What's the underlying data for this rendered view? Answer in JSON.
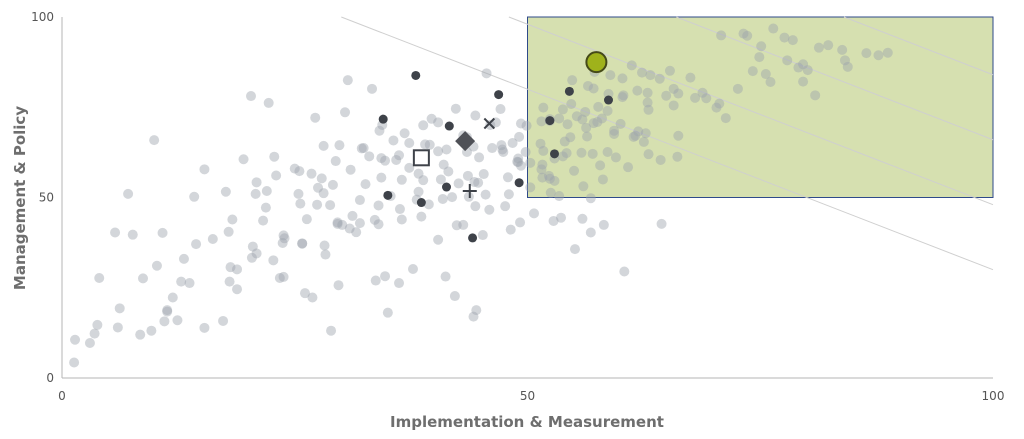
{
  "chart_data": {
    "type": "scatter",
    "title": "",
    "xlabel": "Implementation & Measurement",
    "ylabel": "Management & Policy",
    "xlim": [
      0,
      100
    ],
    "ylim": [
      0,
      100
    ],
    "x_ticks": [
      "0",
      "50",
      "100"
    ],
    "y_ticks": [
      "0",
      "50",
      "100"
    ],
    "grid": false,
    "diagonal_reference_lines": [
      {
        "intercept": 130,
        "slope": -1
      },
      {
        "intercept": 148,
        "slope": -1
      },
      {
        "intercept": 166,
        "slope": -1
      },
      {
        "intercept": 184,
        "slope": -1
      },
      {
        "intercept": 202,
        "slope": -1
      },
      {
        "intercept": 220,
        "slope": -1
      }
    ],
    "highlight_region": {
      "x": [
        50,
        100
      ],
      "y": [
        50,
        100
      ],
      "color": "#c8d595"
    },
    "background_color": "#9ea3ad",
    "background_points": [
      [
        1.3,
        4.3
      ],
      [
        8.4,
        12.0
      ],
      [
        1.4,
        10.6
      ],
      [
        17.3,
        15.8
      ],
      [
        20.8,
        51.0
      ],
      [
        12.8,
        26.7
      ],
      [
        23.8,
        28.0
      ],
      [
        18.8,
        24.6
      ],
      [
        23.4,
        27.7
      ],
      [
        10.8,
        40.2
      ],
      [
        8.7,
        27.6
      ],
      [
        5.7,
        40.3
      ],
      [
        14.4,
        37.1
      ],
      [
        29.1,
        53.5
      ],
      [
        7.6,
        39.7
      ],
      [
        21.9,
        47.2
      ],
      [
        16.2,
        38.5
      ],
      [
        11.3,
        18.8
      ],
      [
        17.9,
        40.5
      ],
      [
        30.9,
        41.4
      ],
      [
        11.0,
        15.7
      ],
      [
        13.7,
        26.3
      ],
      [
        22.7,
        32.6
      ],
      [
        20.9,
        54.2
      ],
      [
        27.5,
        52.7
      ],
      [
        3.0,
        9.7
      ],
      [
        18.3,
        43.9
      ],
      [
        34.0,
        42.6
      ],
      [
        28.1,
        51.2
      ],
      [
        18.1,
        30.7
      ],
      [
        25.8,
        37.3
      ],
      [
        23.8,
        39.5
      ],
      [
        29.6,
        42.7
      ],
      [
        32.0,
        42.9
      ],
      [
        20.5,
        36.4
      ],
      [
        21.6,
        43.6
      ],
      [
        18.8,
        30.1
      ],
      [
        33.0,
        61.4
      ],
      [
        25.4,
        51.0
      ],
      [
        11.9,
        22.3
      ],
      [
        25.6,
        48.3
      ],
      [
        32.6,
        53.7
      ],
      [
        38.3,
        51.6
      ],
      [
        26.3,
        44.0
      ],
      [
        9.6,
        13.1
      ],
      [
        23.9,
        38.7
      ],
      [
        39.0,
        64.7
      ],
      [
        22.0,
        51.8
      ],
      [
        34.1,
        68.5
      ],
      [
        31.2,
        44.9
      ],
      [
        25.5,
        57.3
      ],
      [
        34.3,
        60.9
      ],
      [
        25.8,
        37.2
      ],
      [
        20.9,
        34.5
      ],
      [
        18.0,
        26.7
      ],
      [
        28.8,
        47.9
      ],
      [
        42.6,
        53.9
      ],
      [
        43.7,
        50.2
      ],
      [
        34.7,
        60.2
      ],
      [
        32.4,
        63.7
      ],
      [
        38.3,
        56.6
      ],
      [
        23.7,
        37.4
      ],
      [
        41.0,
        59.1
      ],
      [
        35.3,
        50.4
      ],
      [
        28.2,
        36.7
      ],
      [
        43.1,
        67.2
      ],
      [
        44.8,
        61.1
      ],
      [
        46.2,
        63.7
      ],
      [
        43.5,
        62.6
      ],
      [
        27.4,
        48.0
      ],
      [
        28.1,
        64.3
      ],
      [
        44.2,
        64.1
      ],
      [
        38.8,
        70.0
      ],
      [
        22.8,
        61.3
      ],
      [
        34.3,
        55.5
      ],
      [
        36.2,
        61.7
      ],
      [
        40.4,
        62.8
      ],
      [
        29.6,
        43.1
      ],
      [
        47.4,
        62.6
      ],
      [
        32.0,
        49.3
      ],
      [
        37.3,
        65.1
      ],
      [
        46.6,
        70.8
      ],
      [
        30.1,
        42.4
      ],
      [
        36.5,
        43.9
      ],
      [
        38.1,
        49.4
      ],
      [
        44.4,
        47.6
      ],
      [
        44.7,
        54.1
      ],
      [
        44.3,
        54.3
      ],
      [
        41.3,
        63.3
      ],
      [
        41.5,
        57.2
      ],
      [
        49.0,
        60.8
      ],
      [
        35.6,
        65.8
      ],
      [
        44.4,
        72.7
      ],
      [
        43.4,
        65.1
      ],
      [
        45.3,
        56.5
      ],
      [
        41.9,
        50.1
      ],
      [
        50.3,
        52.8
      ],
      [
        39.5,
        64.6
      ],
      [
        43.6,
        56.0
      ],
      [
        47.9,
        55.6
      ],
      [
        48.9,
        59.9
      ],
      [
        52.5,
        51.3
      ],
      [
        35.9,
        60.4
      ],
      [
        49.0,
        59.8
      ],
      [
        48.4,
        65.1
      ],
      [
        53.8,
        61.4
      ],
      [
        47.2,
        64.5
      ],
      [
        43.5,
        66.7
      ],
      [
        40.4,
        70.8
      ],
      [
        51.4,
        64.9
      ],
      [
        52.4,
        71.7
      ],
      [
        52.9,
        54.6
      ],
      [
        45.5,
        50.8
      ],
      [
        52.3,
        56.0
      ],
      [
        52.9,
        60.8
      ],
      [
        51.5,
        71.1
      ],
      [
        52.4,
        55.2
      ],
      [
        51.6,
        55.5
      ],
      [
        47.3,
        63.3
      ],
      [
        49.8,
        62.6
      ],
      [
        49.9,
        69.9
      ],
      [
        54.2,
        62.3
      ],
      [
        51.7,
        62.9
      ],
      [
        55.0,
        57.4
      ],
      [
        56.3,
        69.3
      ],
      [
        51.5,
        57.8
      ],
      [
        54.6,
        66.7
      ],
      [
        52.4,
        71.2
      ],
      [
        54.7,
        75.9
      ],
      [
        53.8,
        74.4
      ],
      [
        57.0,
        62.1
      ],
      [
        57.8,
        58.9
      ],
      [
        61.4,
        66.8
      ],
      [
        53.4,
        71.9
      ],
      [
        60.0,
        70.4
      ],
      [
        56.4,
        66.9
      ],
      [
        59.3,
        67.6
      ],
      [
        50.3,
        59.6
      ],
      [
        57.6,
        75.1
      ],
      [
        55.9,
        71.6
      ],
      [
        58.0,
        71.9
      ],
      [
        55.3,
        72.5
      ],
      [
        54.3,
        70.3
      ],
      [
        59.5,
        61.1
      ],
      [
        56.5,
        80.9
      ],
      [
        61.8,
        79.6
      ],
      [
        59.3,
        68.5
      ],
      [
        58.6,
        62.6
      ],
      [
        62.7,
        67.8
      ],
      [
        57.1,
        70.6
      ],
      [
        54.0,
        65.5
      ],
      [
        58.7,
        78.7
      ],
      [
        56.2,
        73.7
      ],
      [
        58.9,
        83.9
      ],
      [
        62.5,
        65.4
      ],
      [
        57.1,
        80.2
      ],
      [
        61.9,
        68.3
      ],
      [
        62.9,
        79.0
      ],
      [
        60.3,
        78.3
      ],
      [
        57.5,
        70.9
      ],
      [
        65.7,
        80.1
      ],
      [
        64.2,
        82.9
      ],
      [
        60.2,
        83.0
      ],
      [
        62.9,
        76.3
      ],
      [
        61.6,
        67.1
      ],
      [
        66.2,
        67.1
      ],
      [
        58.6,
        74.0
      ],
      [
        60.2,
        77.8
      ],
      [
        68.8,
        79.0
      ],
      [
        64.3,
        60.4
      ],
      [
        66.2,
        78.8
      ],
      [
        68.0,
        77.6
      ],
      [
        63.0,
        74.3
      ],
      [
        62.3,
        84.6
      ],
      [
        64.9,
        78.2
      ],
      [
        65.7,
        75.5
      ],
      [
        71.3,
        72.0
      ],
      [
        69.2,
        77.5
      ],
      [
        70.6,
        76.0
      ],
      [
        70.3,
        74.9
      ],
      [
        74.2,
        85.0
      ],
      [
        75.1,
        91.9
      ],
      [
        73.2,
        95.4
      ],
      [
        79.1,
        86.0
      ],
      [
        77.6,
        94.3
      ],
      [
        79.6,
        82.1
      ],
      [
        79.6,
        86.9
      ],
      [
        80.1,
        85.3
      ],
      [
        83.8,
        90.9
      ],
      [
        84.4,
        86.2
      ],
      [
        88.7,
        90.1
      ],
      [
        75.6,
        84.2
      ],
      [
        80.9,
        78.3
      ],
      [
        86.4,
        90.0
      ],
      [
        87.7,
        89.4
      ],
      [
        7.1,
        51.0
      ],
      [
        20.3,
        78.1
      ],
      [
        22.2,
        76.2
      ],
      [
        27.2,
        72.1
      ],
      [
        30.7,
        82.5
      ],
      [
        33.3,
        80.1
      ],
      [
        45.6,
        84.4
      ],
      [
        9.9,
        65.9
      ],
      [
        3.5,
        12.3
      ],
      [
        15.3,
        57.8
      ],
      [
        19.5,
        60.6
      ],
      [
        14.2,
        50.2
      ],
      [
        33.7,
        27.0
      ],
      [
        37.7,
        30.2
      ],
      [
        41.2,
        28.1
      ],
      [
        26.1,
        23.5
      ],
      [
        10.2,
        31.1
      ],
      [
        40.4,
        38.3
      ],
      [
        42.2,
        22.7
      ],
      [
        35.0,
        18.1
      ],
      [
        29.7,
        25.7
      ],
      [
        36.2,
        26.3
      ],
      [
        26.9,
        22.3
      ],
      [
        38.6,
        44.7
      ],
      [
        44.5,
        18.8
      ],
      [
        28.9,
        13.1
      ],
      [
        34.7,
        28.2
      ],
      [
        55.1,
        35.7
      ],
      [
        60.4,
        29.5
      ],
      [
        64.4,
        42.7
      ],
      [
        34.0,
        47.8
      ],
      [
        38.8,
        54.8
      ],
      [
        36.5,
        54.9
      ],
      [
        20.4,
        33.3
      ],
      [
        28.3,
        34.2
      ],
      [
        17.6,
        51.6
      ],
      [
        3.8,
        14.7
      ],
      [
        6.0,
        14.0
      ],
      [
        15.3,
        13.9
      ],
      [
        12.4,
        16.0
      ],
      [
        11.3,
        18.4
      ],
      [
        6.2,
        19.3
      ],
      [
        4.0,
        27.7
      ],
      [
        13.1,
        33.0
      ],
      [
        42.4,
        42.3
      ],
      [
        43.1,
        42.4
      ],
      [
        45.2,
        39.6
      ],
      [
        48.2,
        41.1
      ],
      [
        49.2,
        43.1
      ],
      [
        52.8,
        43.5
      ],
      [
        55.9,
        44.1
      ],
      [
        58.2,
        42.4
      ],
      [
        56.8,
        40.3
      ],
      [
        53.6,
        44.4
      ],
      [
        50.7,
        45.6
      ],
      [
        47.6,
        47.6
      ],
      [
        32.2,
        63.6
      ],
      [
        31.0,
        57.7
      ],
      [
        26.8,
        56.6
      ],
      [
        23.0,
        56.1
      ],
      [
        29.4,
        60.1
      ],
      [
        25.0,
        58.0
      ],
      [
        27.9,
        55.3
      ],
      [
        34.4,
        70.1
      ],
      [
        30.4,
        73.6
      ],
      [
        29.8,
        64.5
      ],
      [
        36.8,
        67.8
      ],
      [
        39.7,
        71.8
      ],
      [
        42.3,
        74.6
      ],
      [
        47.1,
        74.5
      ],
      [
        49.3,
        70.5
      ],
      [
        51.7,
        74.9
      ],
      [
        54.8,
        82.5
      ],
      [
        57.2,
        84.8
      ],
      [
        61.2,
        86.6
      ],
      [
        63.2,
        83.9
      ],
      [
        65.3,
        85.1
      ],
      [
        67.5,
        83.2
      ],
      [
        72.6,
        80.1
      ],
      [
        76.1,
        82.0
      ],
      [
        73.6,
        94.8
      ],
      [
        76.4,
        96.8
      ],
      [
        78.5,
        93.6
      ],
      [
        81.3,
        91.5
      ],
      [
        84.1,
        88.0
      ],
      [
        70.8,
        94.9
      ],
      [
        74.9,
        88.9
      ],
      [
        77.9,
        88.0
      ],
      [
        82.3,
        92.2
      ],
      [
        44.2,
        17.0
      ],
      [
        46.0,
        70.1
      ],
      [
        49.1,
        66.8
      ],
      [
        51.6,
        59.1
      ],
      [
        55.8,
        62.4
      ],
      [
        63.0,
        62.0
      ],
      [
        66.1,
        61.3
      ],
      [
        60.8,
        58.4
      ],
      [
        58.1,
        55.0
      ],
      [
        56.8,
        49.8
      ],
      [
        53.4,
        50.4
      ],
      [
        56.0,
        53.1
      ],
      [
        49.3,
        58.8
      ],
      [
        31.6,
        40.4
      ],
      [
        33.6,
        43.8
      ],
      [
        36.3,
        46.8
      ],
      [
        39.4,
        48.1
      ],
      [
        40.9,
        49.6
      ],
      [
        40.7,
        55.0
      ],
      [
        37.3,
        58.2
      ],
      [
        45.9,
        46.6
      ],
      [
        48.0,
        50.9
      ]
    ],
    "series": [
      {
        "name": "",
        "marker": "dot",
        "color": "#3e4249",
        "points": [
          [
            38.0,
            83.8
          ],
          [
            34.5,
            71.7
          ],
          [
            41.6,
            69.8
          ],
          [
            46.9,
            78.5
          ],
          [
            54.5,
            79.4
          ],
          [
            58.7,
            77.0
          ],
          [
            52.4,
            71.3
          ],
          [
            52.9,
            62.1
          ],
          [
            49.1,
            54.1
          ],
          [
            35.0,
            50.6
          ],
          [
            38.6,
            48.6
          ],
          [
            41.3,
            52.9
          ],
          [
            44.1,
            38.8
          ]
        ]
      },
      {
        "name": "",
        "marker": "cross",
        "color": "#3e4249",
        "points": [
          [
            45.9,
            70.5
          ]
        ]
      },
      {
        "name": "",
        "marker": "diamond",
        "color": "#4f5157",
        "points": [
          [
            43.3,
            65.6
          ]
        ]
      },
      {
        "name": "",
        "marker": "square",
        "color": "#3e4249",
        "points": [
          [
            38.6,
            61.0
          ]
        ]
      },
      {
        "name": "",
        "marker": "plus",
        "color": "#3e4249",
        "points": [
          [
            43.8,
            51.8
          ]
        ]
      },
      {
        "name": "",
        "marker": "large-circle",
        "color": "#9fb21b",
        "points": [
          [
            57.4,
            87.5
          ]
        ]
      }
    ]
  }
}
